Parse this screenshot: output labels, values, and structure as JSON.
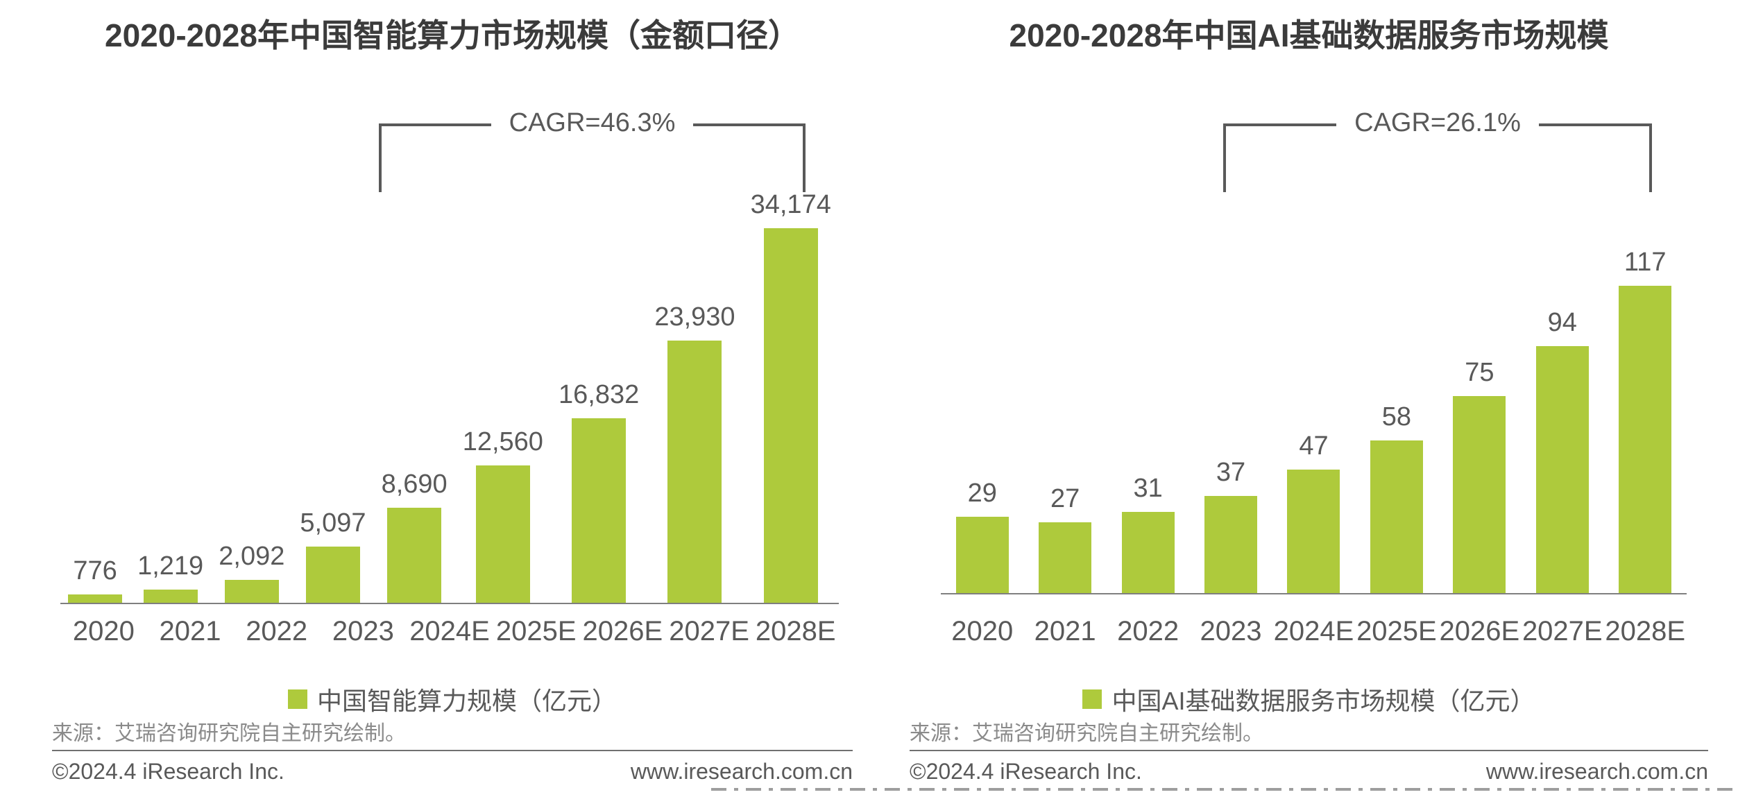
{
  "chart_data": [
    {
      "type": "bar",
      "title": "2020-2028年中国智能算力市场规模（金额口径）",
      "cagr_label": "CAGR=46.3%",
      "categories": [
        "2020",
        "2021",
        "2022",
        "2023",
        "2024E",
        "2025E",
        "2026E",
        "2027E",
        "2028E"
      ],
      "values": [
        776,
        1219,
        2092,
        5097,
        8690,
        12560,
        16832,
        23930,
        34174
      ],
      "value_labels": [
        "776",
        "1,219",
        "2,092",
        "5,097",
        "8,690",
        "12,560",
        "16,832",
        "23,930",
        "34,174"
      ],
      "legend": "中国智能算力规模（亿元）",
      "source": "来源：艾瑞咨询研究院自主研究绘制。",
      "footer_left": "©2024.4 iResearch Inc.",
      "footer_right": "www.iresearch.com.cn",
      "bar_color": "#aeca3c",
      "ylim": [
        0,
        36000
      ],
      "grid": false,
      "legend_position": "bottom"
    },
    {
      "type": "bar",
      "title": "2020-2028年中国AI基础数据服务市场规模",
      "cagr_label": "CAGR=26.1%",
      "categories": [
        "2020",
        "2021",
        "2022",
        "2023",
        "2024E",
        "2025E",
        "2026E",
        "2027E",
        "2028E"
      ],
      "values": [
        29,
        27,
        31,
        37,
        47,
        58,
        75,
        94,
        117
      ],
      "value_labels": [
        "29",
        "27",
        "31",
        "37",
        "47",
        "58",
        "75",
        "94",
        "117"
      ],
      "legend": "中国AI基础数据服务市场规模（亿元）",
      "source": "来源：艾瑞咨询研究院自主研究绘制。",
      "footer_left": "©2024.4 iResearch Inc.",
      "footer_right": "www.iresearch.com.cn",
      "bar_color": "#aeca3c",
      "ylim": [
        0,
        125
      ],
      "grid": false,
      "legend_position": "bottom"
    }
  ]
}
